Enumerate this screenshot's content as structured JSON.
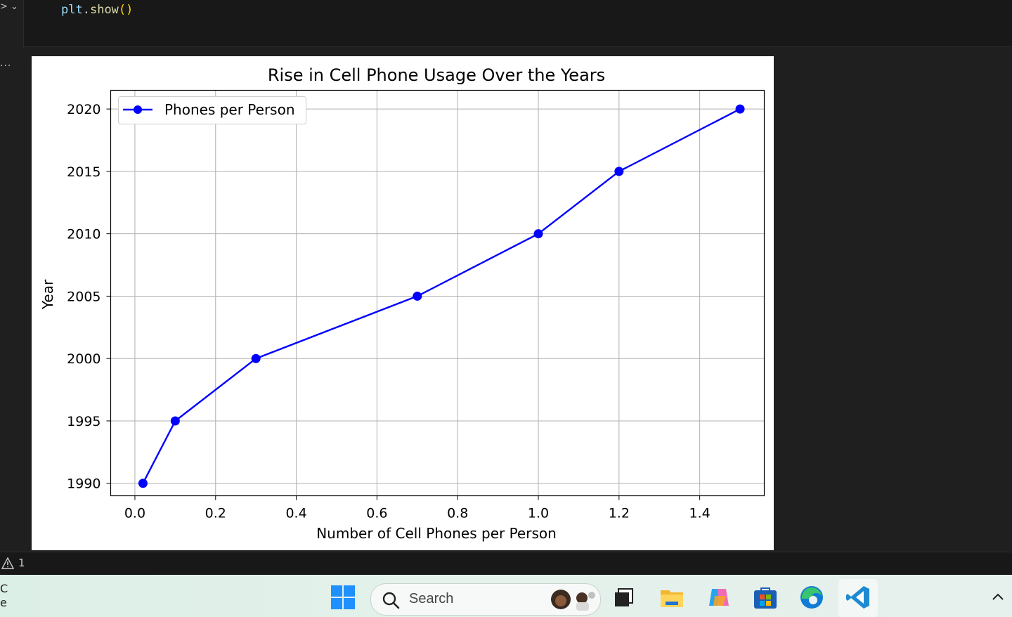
{
  "editor": {
    "code_line": {
      "obj": "plt",
      "dot": ".",
      "fn": "show",
      "parens": "()"
    },
    "output_menu_dots": "..."
  },
  "chart_data": {
    "type": "line",
    "title": "Rise in Cell Phone Usage Over the Years",
    "xlabel": "Number of Cell Phones per Person",
    "ylabel": "Year",
    "xlim": [
      -0.06,
      1.56
    ],
    "ylim": [
      1989,
      2021.5
    ],
    "xticks": [
      0.0,
      0.2,
      0.4,
      0.6,
      0.8,
      1.0,
      1.2,
      1.4
    ],
    "xtick_labels": [
      "0.0",
      "0.2",
      "0.4",
      "0.6",
      "0.8",
      "1.0",
      "1.2",
      "1.4"
    ],
    "yticks": [
      1990,
      1995,
      2000,
      2005,
      2010,
      2015,
      2020
    ],
    "ytick_labels": [
      "1990",
      "1995",
      "2000",
      "2005",
      "2010",
      "2015",
      "2020"
    ],
    "grid": true,
    "legend": "top-left",
    "series": [
      {
        "name": "Phones per Person",
        "color": "#0000ff",
        "marker": "circle",
        "x": [
          0.02,
          0.1,
          0.3,
          0.7,
          1.0,
          1.2,
          1.5
        ],
        "y": [
          1990,
          1995,
          2000,
          2005,
          2010,
          2015,
          2020
        ]
      }
    ]
  },
  "statusbar": {
    "warning_icon": "warning-icon",
    "warning_count": "1"
  },
  "taskbar": {
    "left_text": [
      "C",
      "e"
    ],
    "search_placeholder": "Search",
    "icons": [
      "windows-start-icon",
      "search-icon",
      "task-view-icon",
      "file-explorer-icon",
      "copilot-icon",
      "microsoft-store-icon",
      "edge-icon",
      "vscode-icon",
      "chevron-up-icon"
    ]
  }
}
